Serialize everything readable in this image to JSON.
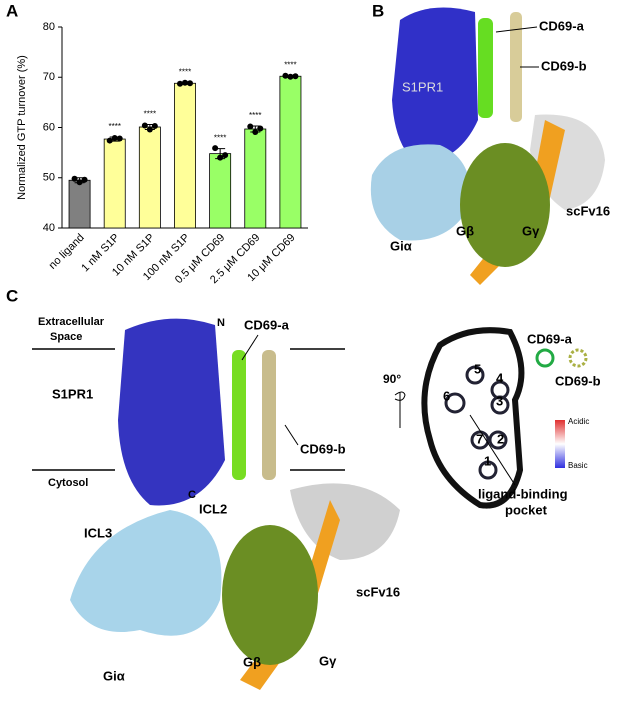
{
  "chart_data": {
    "type": "bar",
    "ylabel": "Normalized GTP turnover (%)",
    "categories": [
      "no ligand",
      "1 nM S1P",
      "10 nM S1P",
      "100 nM S1P",
      "0.5 μM CD69",
      "2.5 μM CD69",
      "10 μM CD69"
    ],
    "values": [
      49.5,
      57.7,
      60.1,
      68.8,
      54.8,
      59.7,
      70.2
    ],
    "errors": [
      0.5,
      0.4,
      0.5,
      0.2,
      1.0,
      0.6,
      0.2
    ],
    "points": [
      [
        49.8,
        49.1,
        49.6
      ],
      [
        57.4,
        57.9,
        57.8
      ],
      [
        60.4,
        59.6,
        60.3
      ],
      [
        68.7,
        68.9,
        68.8
      ],
      [
        55.9,
        54.0,
        54.5
      ],
      [
        60.2,
        59.1,
        59.8
      ],
      [
        70.3,
        70.1,
        70.2
      ]
    ],
    "colors": [
      "#808080",
      "#ffff99",
      "#ffff99",
      "#ffff99",
      "#99ff66",
      "#99ff66",
      "#99ff66"
    ],
    "annotations": [
      null,
      "****",
      "****",
      "****",
      "****",
      "****",
      "****"
    ],
    "ylim": [
      40,
      80
    ],
    "yticks": [
      40,
      50,
      60,
      70,
      80
    ]
  },
  "panel_labels": [
    "A",
    "B",
    "C"
  ],
  "panel_b": {
    "labels": [
      "CD69-a",
      "CD69-b",
      "S1PR1",
      "Giα",
      "Gβ",
      "Gγ",
      "scFv16"
    ]
  },
  "panel_c": {
    "labels": [
      [
        "Extracellular",
        "Space"
      ],
      "N",
      "CD69-a",
      "S1PR1",
      "CD69-b",
      "Cytosol",
      "C",
      "ICL3",
      "ICL2",
      "scFv16",
      "Giα",
      "Gβ",
      "Gγ"
    ],
    "section_labels": [
      "90°",
      "CD69-a",
      "CD69-b",
      "5",
      "4",
      "6",
      "3",
      "2",
      "7",
      "1",
      "Acidic",
      "Basic",
      [
        "ligand-binding",
        "pocket"
      ]
    ]
  }
}
